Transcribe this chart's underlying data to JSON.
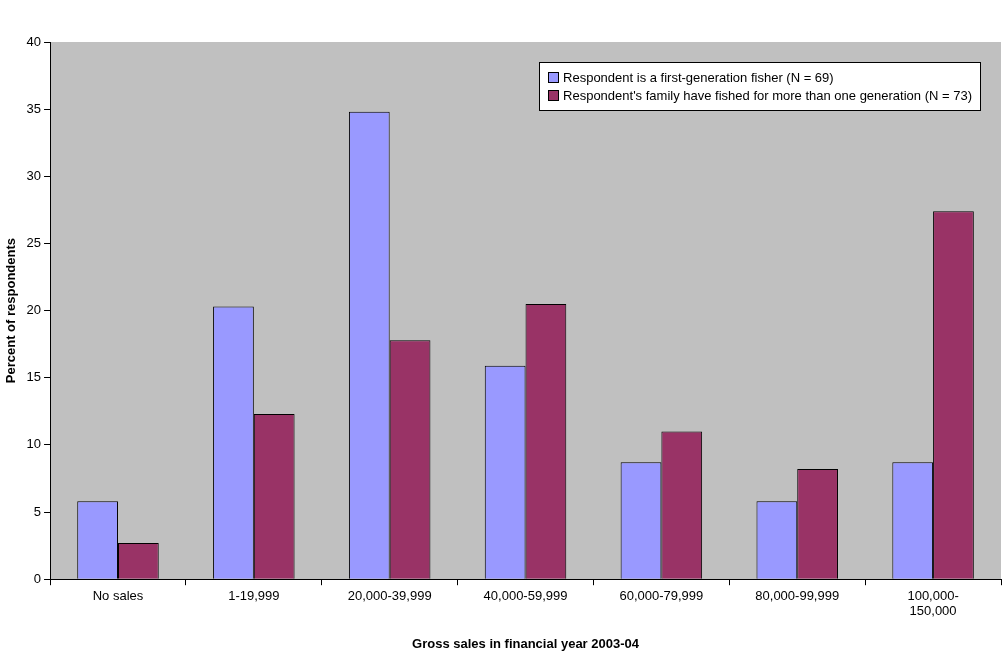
{
  "chart_data": {
    "type": "bar",
    "xlabel": "Gross sales in financial year 2003-04",
    "ylabel": "Percent of respondents",
    "categories": [
      "No sales",
      "1-19,999",
      "20,000-39,999",
      "40,000-59,999",
      "60,000-79,999",
      "80,000-99,999",
      "100,000-150,000"
    ],
    "series": [
      {
        "name": "Respondent is a first-generation fisher (N = 69)",
        "color": "#9999ff",
        "values": [
          5.8,
          20.3,
          34.8,
          15.9,
          8.7,
          5.8,
          8.7
        ]
      },
      {
        "name": "Respondent's family have fished for more than one generation (N = 73)",
        "color": "#993366",
        "values": [
          2.7,
          12.3,
          17.8,
          20.5,
          11.0,
          8.2,
          27.4
        ]
      }
    ],
    "ylim": [
      0,
      40
    ],
    "yticks": [
      0,
      5,
      10,
      15,
      20,
      25,
      30,
      35,
      40
    ],
    "grid": false,
    "legend": "top right"
  }
}
